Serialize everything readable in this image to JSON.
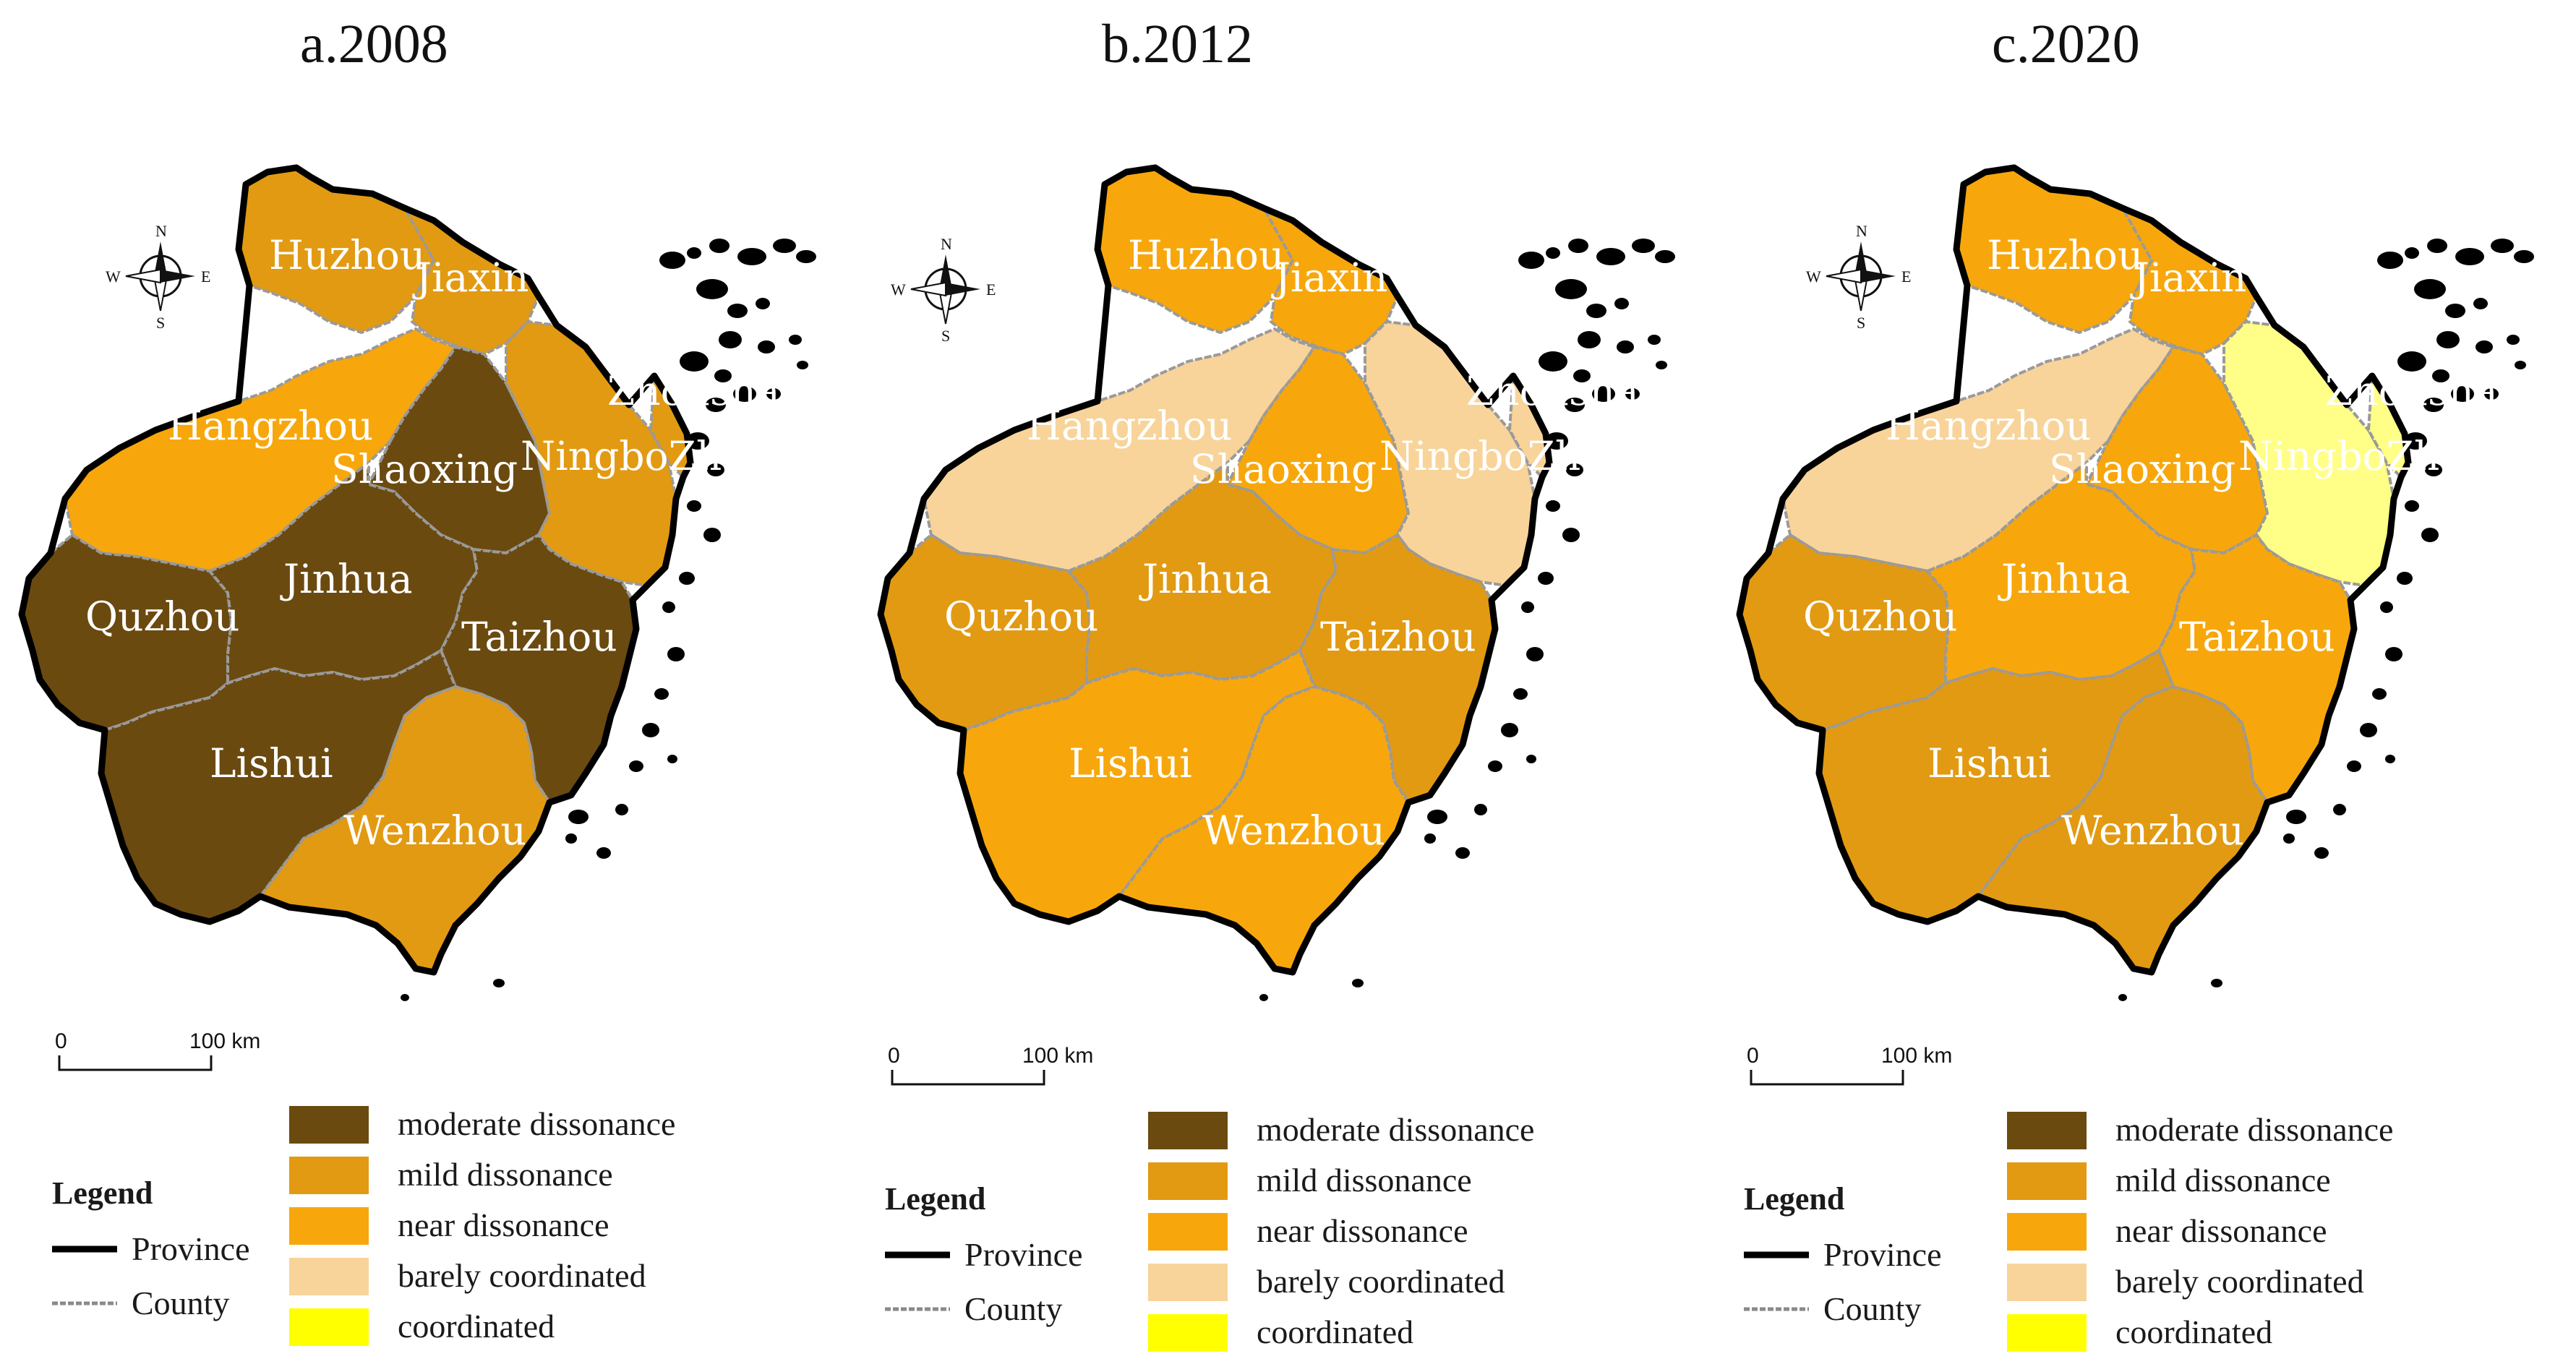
{
  "figure": {
    "maps": [
      {
        "id": "a",
        "title": "a.2008",
        "regions": {
          "huzhou": "mild dissonance",
          "jiaxing": "mild dissonance",
          "hangzhou": "near dissonance",
          "shaoxing": "moderate dissonance",
          "ningbo": "mild dissonance",
          "zhoushan": "mild dissonance",
          "quzhou": "moderate dissonance",
          "jinhua": "moderate dissonance",
          "taizhou": "moderate dissonance",
          "lishui": "moderate dissonance",
          "wenzhou": "mild dissonance"
        }
      },
      {
        "id": "b",
        "title": "b.2012",
        "regions": {
          "huzhou": "near dissonance",
          "jiaxing": "near dissonance",
          "hangzhou": "barely coordinated",
          "shaoxing": "near dissonance",
          "ningbo": "barely coordinated",
          "zhoushan": "barely coordinated",
          "quzhou": "mild dissonance",
          "jinhua": "mild dissonance",
          "taizhou": "mild dissonance",
          "lishui": "near dissonance",
          "wenzhou": "near dissonance"
        }
      },
      {
        "id": "c",
        "title": "c.2020",
        "regions": {
          "huzhou": "near dissonance",
          "jiaxing": "near dissonance",
          "hangzhou": "barely coordinated",
          "shaoxing": "near dissonance",
          "ningbo": "coordinated",
          "zhoushan": "coordinated",
          "quzhou": "mild dissonance",
          "jinhua": "near dissonance",
          "taizhou": "near dissonance",
          "lishui": "mild dissonance",
          "wenzhou": "mild dissonance"
        }
      }
    ],
    "region_labels": {
      "huzhou": "Huzhou",
      "jiaxing": "Jiaxin",
      "hangzhou": "Hangzhou",
      "shaoxing": "Shaoxing",
      "ningbo": "NingboZhou",
      "zhoushan": "Zhousha",
      "quzhou": "Quzhou",
      "jinhua": "Jinhua",
      "taizhou": "Taizhou",
      "lishui": "Lishui",
      "wenzhou": "Wenzhou"
    },
    "compass": {
      "n": "N",
      "s": "S",
      "e": "E",
      "w": "W"
    },
    "scale_bar": {
      "start": "0",
      "end": "100 km"
    },
    "legend": {
      "title": "Legend",
      "lines": [
        {
          "label": "Province",
          "style": "province"
        },
        {
          "label": "County",
          "style": "county"
        }
      ],
      "classes": [
        {
          "label": "moderate dissonance",
          "color": "#6b4a10"
        },
        {
          "label": "mild dissonance",
          "color": "#e29a12"
        },
        {
          "label": "near dissonance",
          "color": "#f7a70c"
        },
        {
          "label": "barely coordinated",
          "color": "#f8d49a"
        },
        {
          "label": "coordinated",
          "color": "#ffff00"
        }
      ]
    },
    "colors": {
      "province_border": "#000000",
      "county_border": "#9a9a9a",
      "label_text": "#ffffff",
      "zhoushan_2020": "#ffff88"
    }
  }
}
